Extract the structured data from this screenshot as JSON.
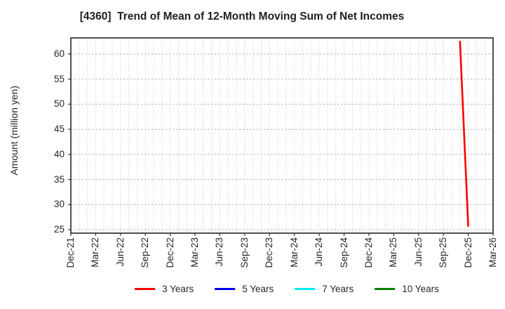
{
  "chart_data": {
    "type": "line",
    "title": "[4360]  Trend of Mean of 12-Month Moving Sum of Net Incomes",
    "xlabel": "",
    "ylabel": "Amount (million yen)",
    "ylim": [
      24.3,
      63.2
    ],
    "yticks": [
      25,
      30,
      35,
      40,
      45,
      50,
      55,
      60
    ],
    "x_tick_labels": [
      "Dec-21",
      "Mar-22",
      "Jun-22",
      "Sep-22",
      "Dec-22",
      "Mar-23",
      "Jun-23",
      "Sep-23",
      "Dec-23",
      "Mar-24",
      "Jun-24",
      "Sep-24",
      "Dec-24",
      "Mar-25",
      "Jun-25",
      "Sep-25",
      "Dec-25",
      "Mar-26"
    ],
    "months_per_tick": 3,
    "grid": {
      "visible": true,
      "vertical_minor_monthly": true,
      "vertical_color": "#bdbdbd",
      "horizontal_color": "#b5b5b5"
    },
    "frame_color": "#3c3c3c",
    "legend_position": "bottom",
    "series": [
      {
        "name": "3 Years",
        "color": "#ff0000",
        "points": [
          {
            "x": "Nov-25",
            "month_offset": 47,
            "y": 62.6
          },
          {
            "x": "Dec-25",
            "month_offset": 48,
            "y": 25.6
          }
        ]
      },
      {
        "name": "5 Years",
        "color": "#0000ff",
        "points": []
      },
      {
        "name": "7 Years",
        "color": "#00eeee",
        "points": []
      },
      {
        "name": "10 Years",
        "color": "#008000",
        "points": []
      }
    ]
  }
}
